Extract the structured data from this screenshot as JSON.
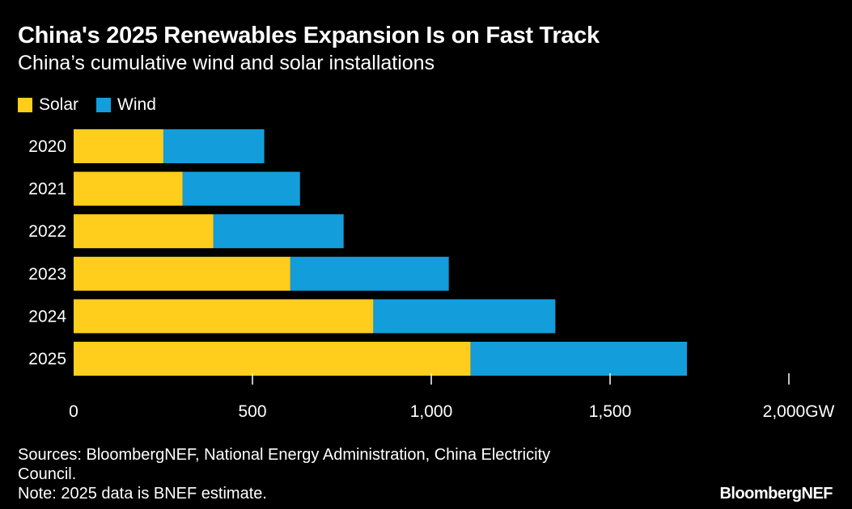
{
  "chart_data": {
    "type": "bar",
    "orientation": "horizontal",
    "stacked": true,
    "title": "China's 2025 Renewables Expansion Is on Fast Track",
    "subtitle": "China’s cumulative wind and solar installations",
    "categories": [
      "2020",
      "2021",
      "2022",
      "2023",
      "2024",
      "2025"
    ],
    "series": [
      {
        "name": "Solar",
        "color": "#FFCD1C",
        "values": [
          251,
          305,
          391,
          606,
          838,
          1110
        ]
      },
      {
        "name": "Wind",
        "color": "#139DDB",
        "values": [
          282,
          328,
          364,
          443,
          509,
          605
        ]
      }
    ],
    "xlim": [
      0,
      2000
    ],
    "xticks": [
      0,
      500,
      1000,
      1500,
      2000
    ],
    "xtick_labels": [
      "0",
      "500",
      "1,000",
      "1,500",
      "2,000GW"
    ],
    "legend_position": "top-left",
    "grid": false
  },
  "footer": {
    "sources": "Sources: BloombergNEF, National Energy Administration, China Electricity Council.",
    "note": "Note: 2025 data is BNEF estimate.",
    "logo": "BloombergNEF"
  }
}
